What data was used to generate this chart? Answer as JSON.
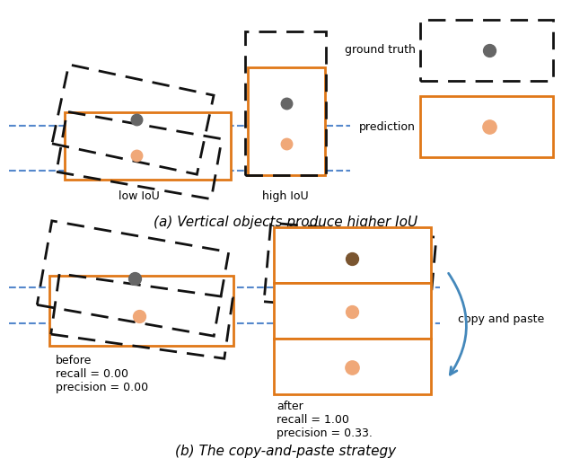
{
  "fig_width": 6.36,
  "fig_height": 5.3,
  "dpi": 100,
  "bg_color": "#ffffff",
  "gt_color": "#666666",
  "pred_color": "#f0a878",
  "brown_color": "#7a5530",
  "orange_edge": "#e07818",
  "dashed_edge": "#111111",
  "blue_line": "#5588cc",
  "arrow_color": "#4488bb",
  "title_a": "(a) Vertical objects produce higher IoU",
  "title_b": "(b) The copy-and-paste strategy",
  "label_gt": "ground truth",
  "label_pred": "prediction",
  "label_low": "low IoU",
  "label_high": "high IoU",
  "label_cp": "copy and paste",
  "label_before_line1": "before",
  "label_before_line2": "recall = 0.00",
  "label_before_line3": "precision = 0.00",
  "label_after_line1": "after",
  "label_after_line2": "recall = 1.00",
  "label_after_line3": "precision = 0.33."
}
